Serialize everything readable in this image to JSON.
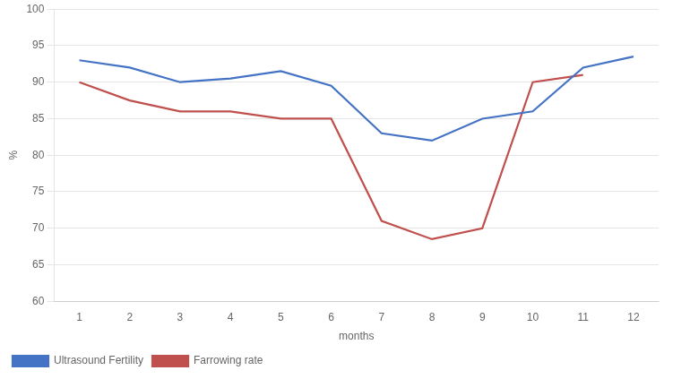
{
  "chart_data": {
    "type": "line",
    "x": [
      1,
      2,
      3,
      4,
      5,
      6,
      7,
      8,
      9,
      10,
      11,
      12
    ],
    "xlabel": "months",
    "ylabel": "%",
    "xlim": [
      0.5,
      12.5
    ],
    "xticks": [
      1,
      2,
      3,
      4,
      5,
      6,
      7,
      8,
      9,
      10,
      11,
      12
    ],
    "ylim": [
      60,
      100
    ],
    "yticks": [
      60,
      65,
      70,
      75,
      80,
      85,
      90,
      95,
      100
    ],
    "grid": "y",
    "legend": "lower left",
    "series": [
      {
        "name": "Ultrasound Fertility",
        "color": "#4472C4",
        "values": [
          93,
          92,
          90,
          90.5,
          91.5,
          89.5,
          83,
          82,
          85,
          86,
          92,
          93.5
        ]
      },
      {
        "name": "Farrowing rate",
        "color": "#C0504D",
        "values": [
          90,
          87.5,
          86,
          86,
          85,
          85,
          71,
          68.5,
          70,
          90,
          91,
          null
        ]
      }
    ]
  }
}
